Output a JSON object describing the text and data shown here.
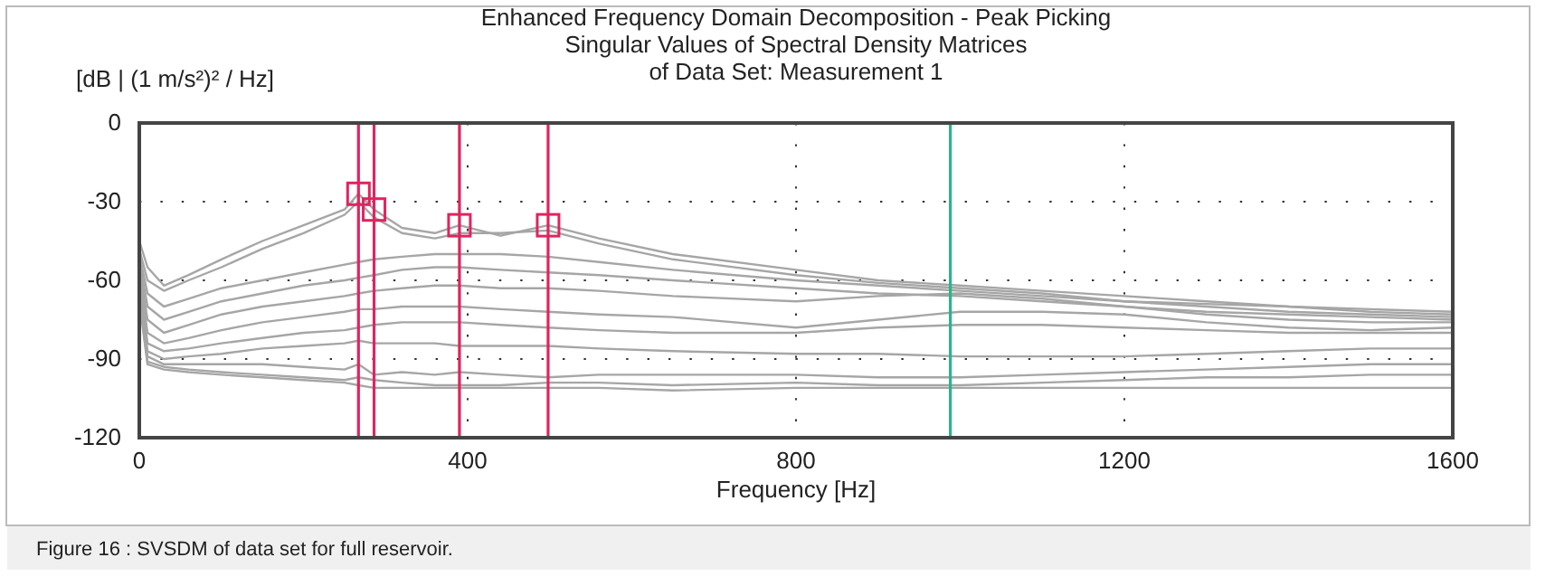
{
  "chart_data": {
    "type": "line",
    "title": "Enhanced Frequency Domain Decomposition - Peak Picking",
    "subtitle": "Singular Values of Spectral Density Matrices\nof Data Set: Measurement 1",
    "xlabel": "Frequency [Hz]",
    "ylabel": "[dB | (1 m/s²)² / Hz]",
    "annotations": [
      "Figure 16 : SVSDM of data set for full reservoir."
    ],
    "x": [
      0,
      10,
      30,
      60,
      100,
      150,
      200,
      250,
      267,
      286,
      320,
      360,
      390,
      440,
      498,
      560,
      650,
      800,
      900,
      1000,
      1100,
      1200,
      1300,
      1400,
      1500,
      1600
    ],
    "xlim": [
      0,
      1600
    ],
    "xticks": [
      0,
      400,
      800,
      1200,
      1600
    ],
    "ylim": [
      -120,
      0
    ],
    "yticks": [
      -120,
      -90,
      -60,
      -30,
      0
    ],
    "grid": true,
    "line_style": "solid",
    "series": [
      {
        "color": "#a6a6a6",
        "values": [
          -45,
          -55,
          -62,
          -58,
          -52,
          -45,
          -39,
          -33,
          -27,
          -33,
          -40,
          -42,
          -39,
          -43,
          -39,
          -44,
          -50,
          -56,
          -60,
          -62,
          -64,
          -66,
          -68,
          -70,
          -71,
          -72
        ]
      },
      {
        "color": "#a6a6a6",
        "values": [
          -48,
          -60,
          -64,
          -60,
          -55,
          -48,
          -42,
          -35,
          -30,
          -36,
          -42,
          -44,
          -42,
          -42,
          -41,
          -46,
          -52,
          -58,
          -61,
          -63,
          -65,
          -68,
          -69,
          -70,
          -72,
          -73
        ]
      },
      {
        "color": "#a6a6a6",
        "values": [
          -50,
          -65,
          -70,
          -67,
          -63,
          -60,
          -57,
          -54,
          -53,
          -52,
          -51,
          -50,
          -50,
          -50,
          -51,
          -53,
          -56,
          -60,
          -62,
          -64,
          -66,
          -68,
          -70,
          -72,
          -73,
          -74
        ]
      },
      {
        "color": "#a6a6a6",
        "values": [
          -52,
          -70,
          -75,
          -72,
          -68,
          -65,
          -62,
          -60,
          -59,
          -58,
          -56,
          -55,
          -55,
          -56,
          -57,
          -58,
          -60,
          -63,
          -65,
          -66,
          -68,
          -70,
          -72,
          -73,
          -74,
          -75
        ]
      },
      {
        "color": "#a6a6a6",
        "values": [
          -55,
          -75,
          -80,
          -77,
          -73,
          -70,
          -68,
          -66,
          -65,
          -64,
          -63,
          -62,
          -62,
          -63,
          -63,
          -64,
          -66,
          -68,
          -66,
          -65,
          -67,
          -70,
          -73,
          -75,
          -76,
          -76
        ]
      },
      {
        "color": "#a6a6a6",
        "values": [
          -58,
          -80,
          -84,
          -82,
          -79,
          -76,
          -74,
          -72,
          -71,
          -71,
          -70,
          -70,
          -70,
          -71,
          -72,
          -73,
          -74,
          -78,
          -75,
          -72,
          -72,
          -73,
          -76,
          -78,
          -79,
          -78
        ]
      },
      {
        "color": "#a6a6a6",
        "values": [
          -60,
          -84,
          -87,
          -86,
          -84,
          -82,
          -80,
          -79,
          -78,
          -77,
          -76,
          -76,
          -76,
          -77,
          -78,
          -79,
          -80,
          -80,
          -78,
          -77,
          -77,
          -78,
          -79,
          -80,
          -80,
          -80
        ]
      },
      {
        "color": "#a6a6a6",
        "values": [
          -62,
          -87,
          -90,
          -89,
          -88,
          -86,
          -85,
          -84,
          -83,
          -84,
          -84,
          -84,
          -85,
          -85,
          -85,
          -86,
          -87,
          -88,
          -88,
          -89,
          -89,
          -89,
          -88,
          -87,
          -86,
          -86
        ]
      },
      {
        "color": "#a6a6a6",
        "values": [
          -64,
          -89,
          -92,
          -92,
          -92,
          -92,
          -93,
          -94,
          -92,
          -96,
          -95,
          -96,
          -95,
          -96,
          -97,
          -96,
          -96,
          -96,
          -97,
          -97,
          -96,
          -95,
          -94,
          -93,
          -92,
          -92
        ]
      },
      {
        "color": "#a6a6a6",
        "values": [
          -66,
          -91,
          -93,
          -94,
          -95,
          -96,
          -97,
          -98,
          -97,
          -98,
          -99,
          -100,
          -100,
          -100,
          -99,
          -99,
          -100,
          -99,
          -100,
          -100,
          -99,
          -98,
          -97,
          -97,
          -96,
          -96
        ]
      },
      {
        "color": "#a6a6a6",
        "values": [
          -68,
          -92,
          -94,
          -95,
          -96,
          -97,
          -98,
          -99,
          -100,
          -101,
          -101,
          -101,
          -101,
          -101,
          -101,
          -101,
          -102,
          -101,
          -101,
          -101,
          -101,
          -101,
          -101,
          -101,
          -101,
          -101
        ]
      },
      {
        "type": "scatter",
        "marker": "square",
        "color": "#e0245e",
        "x": [
          267,
          286,
          390,
          498
        ],
        "values": [
          -27,
          -33,
          -39,
          -39
        ]
      }
    ],
    "ref_lines": [
      {
        "axis": "x",
        "value": 267,
        "color": "#e0245e"
      },
      {
        "axis": "x",
        "value": 286,
        "color": "#e0245e"
      },
      {
        "axis": "x",
        "value": 390,
        "color": "#e0245e"
      },
      {
        "axis": "x",
        "value": 498,
        "color": "#e0245e"
      },
      {
        "axis": "x",
        "value": 988,
        "color": "#2bb48a"
      }
    ]
  }
}
